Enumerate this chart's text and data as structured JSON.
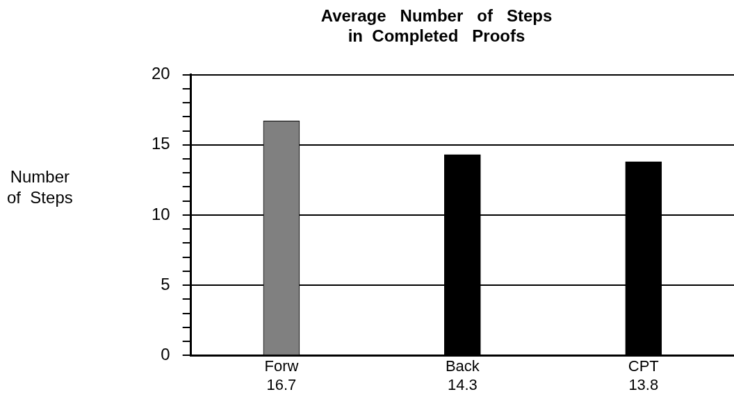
{
  "chart_data": {
    "type": "bar",
    "title": "Average   Number   of   Steps\nin  Completed   Proofs",
    "ylabel": "Number\nof  Steps",
    "categories": [
      "Forw",
      "Back",
      "CPT"
    ],
    "values": [
      16.7,
      14.3,
      13.8
    ],
    "colors": [
      "#808080",
      "#000000",
      "#000000"
    ],
    "ylim": [
      0,
      20
    ],
    "yticks": [
      0,
      {
        "value": 1,
        "label": null
      },
      {
        "value": 2,
        "label": null
      },
      {
        "value": 3,
        "label": null
      },
      {
        "value": 4,
        "label": null
      },
      5,
      {
        "value": 6,
        "label": null
      },
      {
        "value": 7,
        "label": null
      },
      {
        "value": 8,
        "label": null
      },
      {
        "value": 9,
        "label": null
      },
      10,
      {
        "value": 11,
        "label": null
      },
      {
        "value": 12,
        "label": null
      },
      {
        "value": 13,
        "label": null
      },
      {
        "value": 14,
        "label": null
      },
      15,
      {
        "value": 16,
        "label": null
      },
      {
        "value": 17,
        "label": null
      },
      {
        "value": 18,
        "label": null
      },
      {
        "value": 19,
        "label": null
      },
      20
    ],
    "grid": "y",
    "data_labels": true
  }
}
